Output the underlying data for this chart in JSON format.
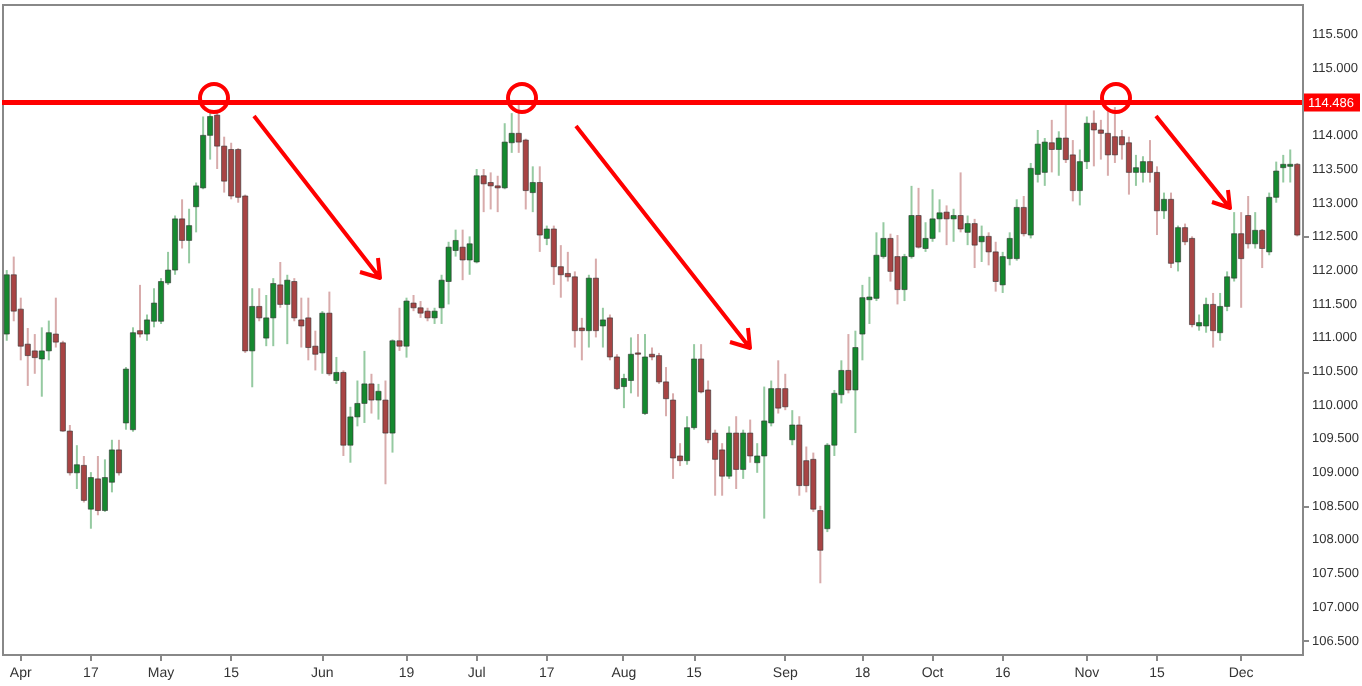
{
  "chart_data": {
    "type": "candlestick",
    "categories": [
      null,
      null,
      "Apr",
      null,
      null,
      null,
      null,
      null,
      null,
      null,
      null,
      null,
      "17",
      null,
      null,
      null,
      null,
      null,
      null,
      null,
      null,
      null,
      "May",
      null,
      null,
      null,
      null,
      null,
      null,
      null,
      null,
      null,
      "15",
      null,
      null,
      null,
      null,
      null,
      null,
      null,
      null,
      null,
      null,
      null,
      null,
      "Jun",
      null,
      null,
      null,
      null,
      null,
      null,
      null,
      null,
      null,
      null,
      null,
      "19",
      null,
      null,
      null,
      null,
      null,
      null,
      null,
      null,
      null,
      "Jul",
      null,
      null,
      null,
      null,
      null,
      null,
      null,
      null,
      null,
      "17",
      null,
      null,
      null,
      null,
      null,
      null,
      null,
      null,
      null,
      null,
      "Aug",
      null,
      null,
      null,
      null,
      null,
      null,
      null,
      null,
      null,
      "15",
      null,
      null,
      null,
      null,
      null,
      null,
      null,
      null,
      null,
      null,
      null,
      null,
      "Sep",
      null,
      null,
      null,
      null,
      null,
      null,
      null,
      null,
      null,
      null,
      "18",
      null,
      null,
      null,
      null,
      null,
      null,
      null,
      null,
      null,
      "Oct",
      null,
      null,
      null,
      null,
      null,
      null,
      null,
      null,
      null,
      "16",
      null,
      null,
      null,
      null,
      null,
      null,
      null,
      null,
      null,
      null,
      null,
      "Nov",
      null,
      null,
      null,
      null,
      null,
      null,
      null,
      null,
      null,
      "15",
      null,
      null,
      null,
      null,
      null,
      null,
      null,
      null,
      null,
      null,
      null,
      "Dec",
      null,
      null,
      null,
      null,
      null,
      null,
      null,
      null
    ],
    "ohlc": [
      [
        111.05,
        112.0,
        110.95,
        111.93
      ],
      [
        111.93,
        112.2,
        111.24,
        111.39
      ],
      [
        111.42,
        111.59,
        110.66,
        110.87
      ],
      [
        110.9,
        111.14,
        110.28,
        110.73
      ],
      [
        110.8,
        111.05,
        110.46,
        110.7
      ],
      [
        110.68,
        111.15,
        110.12,
        110.8
      ],
      [
        110.8,
        111.25,
        110.66,
        111.07
      ],
      [
        111.05,
        111.59,
        110.85,
        110.93
      ],
      [
        110.92,
        110.95,
        109.6,
        109.61
      ],
      [
        109.61,
        109.7,
        108.95,
        108.99
      ],
      [
        108.99,
        109.4,
        108.75,
        109.11
      ],
      [
        109.1,
        109.24,
        108.55,
        108.58
      ],
      [
        108.45,
        109.0,
        108.16,
        108.92
      ],
      [
        108.9,
        109.24,
        108.36,
        108.43
      ],
      [
        108.43,
        109.19,
        108.41,
        108.92
      ],
      [
        108.85,
        109.48,
        108.7,
        109.33
      ],
      [
        109.33,
        109.48,
        108.95,
        108.99
      ],
      [
        109.73,
        110.56,
        109.63,
        110.53
      ],
      [
        109.63,
        111.15,
        109.6,
        111.07
      ],
      [
        111.1,
        111.78,
        111.0,
        111.05
      ],
      [
        111.05,
        111.34,
        110.95,
        111.26
      ],
      [
        111.24,
        111.73,
        111.15,
        111.51
      ],
      [
        111.24,
        111.88,
        111.2,
        111.83
      ],
      [
        111.81,
        112.27,
        111.78,
        112.0
      ],
      [
        112.0,
        112.81,
        111.93,
        112.76
      ],
      [
        112.76,
        113.05,
        112.32,
        112.44
      ],
      [
        112.44,
        112.91,
        112.1,
        112.66
      ],
      [
        112.94,
        113.3,
        112.56,
        113.25
      ],
      [
        113.22,
        114.28,
        113.2,
        114.0
      ],
      [
        114.0,
        114.37,
        113.64,
        114.28
      ],
      [
        114.3,
        114.37,
        113.5,
        113.84
      ],
      [
        113.84,
        113.98,
        113.15,
        113.32
      ],
      [
        113.79,
        113.89,
        113.05,
        113.1
      ],
      [
        113.79,
        113.81,
        113.0,
        113.08
      ],
      [
        113.1,
        113.12,
        110.77,
        110.8
      ],
      [
        110.8,
        111.73,
        110.26,
        111.46
      ],
      [
        111.46,
        111.73,
        111.24,
        111.29
      ],
      [
        110.99,
        111.63,
        110.87,
        111.29
      ],
      [
        111.29,
        111.88,
        110.87,
        111.8
      ],
      [
        111.78,
        112.12,
        111.44,
        111.49
      ],
      [
        111.49,
        111.93,
        110.9,
        111.85
      ],
      [
        111.83,
        111.88,
        111.24,
        111.29
      ],
      [
        111.26,
        111.59,
        110.85,
        111.17
      ],
      [
        111.29,
        111.59,
        110.66,
        110.85
      ],
      [
        110.87,
        111.1,
        110.51,
        110.75
      ],
      [
        110.77,
        111.39,
        110.46,
        111.36
      ],
      [
        111.36,
        111.68,
        110.43,
        110.46
      ],
      [
        110.36,
        110.71,
        110.31,
        110.48
      ],
      [
        110.48,
        110.51,
        109.24,
        109.4
      ],
      [
        109.4,
        109.97,
        109.14,
        109.82
      ],
      [
        109.82,
        110.36,
        109.68,
        110.02
      ],
      [
        110.02,
        110.8,
        109.73,
        110.31
      ],
      [
        110.31,
        110.46,
        109.87,
        110.07
      ],
      [
        110.07,
        110.31,
        109.78,
        110.2
      ],
      [
        110.07,
        110.36,
        108.82,
        109.58
      ],
      [
        109.58,
        110.97,
        109.29,
        110.95
      ],
      [
        110.95,
        111.44,
        110.8,
        110.87
      ],
      [
        110.87,
        111.59,
        110.7,
        111.54
      ],
      [
        111.51,
        111.63,
        111.39,
        111.44
      ],
      [
        111.44,
        111.54,
        111.29,
        111.36
      ],
      [
        111.39,
        111.44,
        111.24,
        111.29
      ],
      [
        111.29,
        111.44,
        111.2,
        111.39
      ],
      [
        111.44,
        111.93,
        111.2,
        111.85
      ],
      [
        111.83,
        112.42,
        111.49,
        112.34
      ],
      [
        112.29,
        112.6,
        112.2,
        112.44
      ],
      [
        112.34,
        112.6,
        111.85,
        112.15
      ],
      [
        112.15,
        112.5,
        111.93,
        112.39
      ],
      [
        112.12,
        113.5,
        112.1,
        113.4
      ],
      [
        113.4,
        113.5,
        112.86,
        113.28
      ],
      [
        113.3,
        113.45,
        112.9,
        113.25
      ],
      [
        113.25,
        113.4,
        112.86,
        113.22
      ],
      [
        113.22,
        114.18,
        113.2,
        113.9
      ],
      [
        113.89,
        114.33,
        113.74,
        114.03
      ],
      [
        114.03,
        114.47,
        113.74,
        113.9
      ],
      [
        113.93,
        113.95,
        112.9,
        113.18
      ],
      [
        113.15,
        113.54,
        112.86,
        113.3
      ],
      [
        113.3,
        113.54,
        112.27,
        112.52
      ],
      [
        112.47,
        112.66,
        112.37,
        112.61
      ],
      [
        112.61,
        112.66,
        111.78,
        112.05
      ],
      [
        112.05,
        112.37,
        111.59,
        111.93
      ],
      [
        111.95,
        112.27,
        111.83,
        111.9
      ],
      [
        111.9,
        111.98,
        110.85,
        111.1
      ],
      [
        111.14,
        111.29,
        110.66,
        111.1
      ],
      [
        111.1,
        111.93,
        110.85,
        111.88
      ],
      [
        111.88,
        112.17,
        111.0,
        111.1
      ],
      [
        111.17,
        111.44,
        110.85,
        111.26
      ],
      [
        111.29,
        111.34,
        110.66,
        110.71
      ],
      [
        110.71,
        110.75,
        110.22,
        110.24
      ],
      [
        110.27,
        110.46,
        109.95,
        110.39
      ],
      [
        110.36,
        111.0,
        110.17,
        110.75
      ],
      [
        110.77,
        111.05,
        110.12,
        110.75
      ],
      [
        109.87,
        111.05,
        109.85,
        110.71
      ],
      [
        110.75,
        110.85,
        110.66,
        110.71
      ],
      [
        110.73,
        110.77,
        110.31,
        110.34
      ],
      [
        110.34,
        110.56,
        109.83,
        110.09
      ],
      [
        110.07,
        110.17,
        108.9,
        109.21
      ],
      [
        109.24,
        109.43,
        109.09,
        109.17
      ],
      [
        109.17,
        109.83,
        109.11,
        109.66
      ],
      [
        109.66,
        110.9,
        109.63,
        110.68
      ],
      [
        110.68,
        110.9,
        110.17,
        110.19
      ],
      [
        110.22,
        110.36,
        109.43,
        109.48
      ],
      [
        109.58,
        109.63,
        108.65,
        109.19
      ],
      [
        109.33,
        109.43,
        108.65,
        108.94
      ],
      [
        108.94,
        109.68,
        108.9,
        109.58
      ],
      [
        109.58,
        109.83,
        108.75,
        109.04
      ],
      [
        109.04,
        109.63,
        108.9,
        109.58
      ],
      [
        109.58,
        109.78,
        109.14,
        109.24
      ],
      [
        109.14,
        109.43,
        108.99,
        109.24
      ],
      [
        109.24,
        110.27,
        108.31,
        109.76
      ],
      [
        109.73,
        110.36,
        109.68,
        110.24
      ],
      [
        110.24,
        110.66,
        109.87,
        109.95
      ],
      [
        110.24,
        110.46,
        109.92,
        109.97
      ],
      [
        109.48,
        109.92,
        109.4,
        109.7
      ],
      [
        109.7,
        109.83,
        108.65,
        108.8
      ],
      [
        109.17,
        109.38,
        108.7,
        108.8
      ],
      [
        109.19,
        109.29,
        108.41,
        108.45
      ],
      [
        108.43,
        108.5,
        107.35,
        107.84
      ],
      [
        108.16,
        109.43,
        108.11,
        109.4
      ],
      [
        109.4,
        110.22,
        109.24,
        110.17
      ],
      [
        110.15,
        110.66,
        110.02,
        110.51
      ],
      [
        110.51,
        111.05,
        110.17,
        110.22
      ],
      [
        110.22,
        111.1,
        109.58,
        110.85
      ],
      [
        111.05,
        111.78,
        110.66,
        111.59
      ],
      [
        111.56,
        111.9,
        111.2,
        111.6
      ],
      [
        111.58,
        112.56,
        111.54,
        112.22
      ],
      [
        112.2,
        112.71,
        112.17,
        112.47
      ],
      [
        112.47,
        112.54,
        111.83,
        111.98
      ],
      [
        112.2,
        112.52,
        111.49,
        111.71
      ],
      [
        111.71,
        112.24,
        111.54,
        112.2
      ],
      [
        112.2,
        113.25,
        112.17,
        112.81
      ],
      [
        112.81,
        113.22,
        112.32,
        112.34
      ],
      [
        112.32,
        112.71,
        112.27,
        112.47
      ],
      [
        112.47,
        113.2,
        112.42,
        112.76
      ],
      [
        112.76,
        113.05,
        112.56,
        112.85
      ],
      [
        112.86,
        112.96,
        112.37,
        112.76
      ],
      [
        112.76,
        112.91,
        112.42,
        112.81
      ],
      [
        112.81,
        113.45,
        112.56,
        112.61
      ],
      [
        112.56,
        112.81,
        112.37,
        112.69
      ],
      [
        112.69,
        112.76,
        112.03,
        112.37
      ],
      [
        112.42,
        112.66,
        112.12,
        112.5
      ],
      [
        112.5,
        112.56,
        112.07,
        112.27
      ],
      [
        112.27,
        112.42,
        111.68,
        111.83
      ],
      [
        111.78,
        112.27,
        111.66,
        112.2
      ],
      [
        112.17,
        112.56,
        112.07,
        112.47
      ],
      [
        112.17,
        113.05,
        112.14,
        112.93
      ],
      [
        112.93,
        113.1,
        112.5,
        112.54
      ],
      [
        112.52,
        113.59,
        112.47,
        113.51
      ],
      [
        113.42,
        114.08,
        113.3,
        113.87
      ],
      [
        113.45,
        113.96,
        113.25,
        113.9
      ],
      [
        113.89,
        114.23,
        113.45,
        113.79
      ],
      [
        113.79,
        114.06,
        113.4,
        113.96
      ],
      [
        113.96,
        114.47,
        113.59,
        113.64
      ],
      [
        113.71,
        113.93,
        113.02,
        113.18
      ],
      [
        113.18,
        113.79,
        112.96,
        113.61
      ],
      [
        113.61,
        114.28,
        113.5,
        114.18
      ],
      [
        114.18,
        114.37,
        113.54,
        114.08
      ],
      [
        114.08,
        114.23,
        113.64,
        114.03
      ],
      [
        114.03,
        114.37,
        113.4,
        113.71
      ],
      [
        113.98,
        114.42,
        113.59,
        113.71
      ],
      [
        113.98,
        114.08,
        113.64,
        113.86
      ],
      [
        113.89,
        113.98,
        113.12,
        113.45
      ],
      [
        113.45,
        113.71,
        113.25,
        113.52
      ],
      [
        113.45,
        113.69,
        113.3,
        113.61
      ],
      [
        113.61,
        113.93,
        113.3,
        113.45
      ],
      [
        113.45,
        113.54,
        112.52,
        112.88
      ],
      [
        112.88,
        113.15,
        112.76,
        113.05
      ],
      [
        113.05,
        113.15,
        112.03,
        112.1
      ],
      [
        112.12,
        112.66,
        111.98,
        112.63
      ],
      [
        112.63,
        112.69,
        112.37,
        112.42
      ],
      [
        112.47,
        112.5,
        111.15,
        111.19
      ],
      [
        111.17,
        111.34,
        111.1,
        111.22
      ],
      [
        111.17,
        111.59,
        111.07,
        111.49
      ],
      [
        111.49,
        111.66,
        110.85,
        111.1
      ],
      [
        111.07,
        111.66,
        110.95,
        111.46
      ],
      [
        111.46,
        111.98,
        111.39,
        111.9
      ],
      [
        111.88,
        112.86,
        111.83,
        112.54
      ],
      [
        112.54,
        112.86,
        111.44,
        112.17
      ],
      [
        112.81,
        113.1,
        112.32,
        112.39
      ],
      [
        112.39,
        112.86,
        112.32,
        112.59
      ],
      [
        112.59,
        112.61,
        112.03,
        112.32
      ],
      [
        112.27,
        113.15,
        112.22,
        113.08
      ],
      [
        113.08,
        113.61,
        113.0,
        113.47
      ],
      [
        113.52,
        113.71,
        113.3,
        113.57
      ],
      [
        113.54,
        113.79,
        113.3,
        113.57
      ],
      [
        113.57,
        113.59,
        112.5,
        112.52
      ]
    ],
    "colors": [
      "#15892f",
      "#a84444",
      "#a84444",
      "#a84444",
      "#a84444",
      "#15892f",
      "#15892f",
      "#a84444",
      "#a84444",
      "#a84444",
      "#15892f",
      "#a84444",
      "#15892f",
      "#a84444",
      "#15892f",
      "#15892f",
      "#a84444",
      "#15892f",
      "#15892f",
      "#a84444",
      "#15892f",
      "#15892f",
      "#15892f",
      "#15892f",
      "#15892f",
      "#a84444",
      "#15892f",
      "#15892f",
      "#15892f",
      "#15892f",
      "#a84444",
      "#a84444",
      "#a84444",
      "#a84444",
      "#a84444",
      "#15892f",
      "#a84444",
      "#15892f",
      "#15892f",
      "#a84444",
      "#15892f",
      "#a84444",
      "#a84444",
      "#a84444",
      "#a84444",
      "#15892f",
      "#a84444",
      "#15892f",
      "#a84444",
      "#15892f",
      "#15892f",
      "#15892f",
      "#a84444",
      "#15892f",
      "#a84444",
      "#15892f",
      "#a84444",
      "#15892f",
      "#a84444",
      "#a84444",
      "#a84444",
      "#15892f",
      "#15892f",
      "#15892f",
      "#15892f",
      "#a84444",
      "#15892f",
      "#15892f",
      "#a84444",
      "#a84444",
      "#a84444",
      "#15892f",
      "#15892f",
      "#a84444",
      "#a84444",
      "#15892f",
      "#a84444",
      "#15892f",
      "#a84444",
      "#a84444",
      "#a84444",
      "#a84444",
      "#a84444",
      "#15892f",
      "#a84444",
      "#15892f",
      "#a84444",
      "#a84444",
      "#15892f",
      "#15892f",
      "#a84444",
      "#15892f",
      "#a84444",
      "#a84444",
      "#a84444",
      "#a84444",
      "#a84444",
      "#15892f",
      "#15892f",
      "#a84444",
      "#a84444",
      "#a84444",
      "#a84444",
      "#15892f",
      "#a84444",
      "#15892f",
      "#a84444",
      "#15892f",
      "#15892f",
      "#15892f",
      "#a84444",
      "#a84444",
      "#15892f",
      "#a84444",
      "#a84444",
      "#a84444",
      "#a84444",
      "#15892f",
      "#15892f",
      "#15892f",
      "#a84444",
      "#15892f",
      "#15892f",
      "#15892f",
      "#15892f",
      "#15892f",
      "#a84444",
      "#a84444",
      "#15892f",
      "#15892f",
      "#a84444",
      "#15892f",
      "#15892f",
      "#15892f",
      "#a84444",
      "#15892f",
      "#a84444",
      "#15892f",
      "#a84444",
      "#15892f",
      "#a84444",
      "#a84444",
      "#15892f",
      "#15892f",
      "#15892f",
      "#a84444",
      "#15892f",
      "#15892f",
      "#15892f",
      "#a84444",
      "#15892f",
      "#a84444",
      "#a84444",
      "#15892f",
      "#15892f",
      "#a84444",
      "#a84444",
      "#a84444",
      "#a84444",
      "#a84444",
      "#a84444",
      "#15892f",
      "#15892f",
      "#a84444",
      "#a84444",
      "#15892f",
      "#a84444",
      "#15892f",
      "#a84444",
      "#a84444",
      "#15892f",
      "#15892f",
      "#a84444",
      "#15892f",
      "#15892f",
      "#15892f",
      "#a84444",
      "#a84444",
      "#15892f",
      "#a84444",
      "#15892f",
      "#15892f",
      "#15892f",
      "#15892f",
      "#a84444"
    ],
    "ylim": [
      106.3,
      115.95
    ],
    "yticks": [
      {
        "value": 106.5,
        "label": "106.500"
      },
      {
        "value": 107,
        "label": "107.000"
      },
      {
        "value": 107.5,
        "label": "107.500"
      },
      {
        "value": 108,
        "label": "108.000"
      },
      {
        "value": 108.5,
        "label": "108.500"
      },
      {
        "value": 109,
        "label": "109.000"
      },
      {
        "value": 109.5,
        "label": "109.500"
      },
      {
        "value": 110,
        "label": "110.000"
      },
      {
        "value": 110.5,
        "label": "110.500"
      },
      {
        "value": 111,
        "label": "111.000"
      },
      {
        "value": 111.5,
        "label": "111.500"
      },
      {
        "value": 112,
        "label": "112.000"
      },
      {
        "value": 112.5,
        "label": "112.500"
      },
      {
        "value": 113,
        "label": "113.000"
      },
      {
        "value": 113.5,
        "label": "113.500"
      },
      {
        "value": 114,
        "label": "114.000"
      },
      {
        "value": 114.5,
        "label": null
      },
      {
        "value": 115,
        "label": "115.000"
      },
      {
        "value": 115.5,
        "label": "115.500"
      }
    ],
    "ref_lines": [
      {
        "axis": "y",
        "value": 114.486,
        "label": "114.486",
        "color": "#ff0000"
      }
    ],
    "grid": false
  }
}
